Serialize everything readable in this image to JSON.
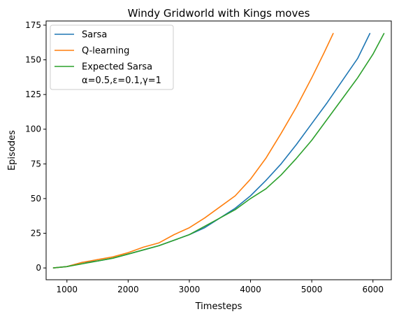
{
  "chart_data": {
    "type": "line",
    "title": "Windy Gridworld with Kings moves",
    "xlabel": "Timesteps",
    "ylabel": "Episodes",
    "xlim": [
      660,
      6300
    ],
    "ylim": [
      -8.5,
      178
    ],
    "xticks": [
      1000,
      2000,
      3000,
      4000,
      5000,
      6000
    ],
    "yticks": [
      0,
      25,
      50,
      75,
      100,
      125,
      150,
      175
    ],
    "grid": false,
    "legend_position": "top-left",
    "legend_note": "α=0.5,ε=0.1,γ=1",
    "series": [
      {
        "name": "Sarsa",
        "color": "#1f77b4",
        "x": [
          780,
          1000,
          1250,
          1500,
          1750,
          2000,
          2250,
          2500,
          2750,
          3000,
          3250,
          3500,
          3750,
          4000,
          4250,
          4500,
          4750,
          5000,
          5250,
          5500,
          5750,
          5950
        ],
        "y": [
          0,
          1,
          4,
          5,
          7,
          10,
          13,
          16,
          20,
          24,
          29,
          36,
          43,
          52,
          63,
          75,
          89,
          104,
          119,
          135,
          151,
          169
        ]
      },
      {
        "name": "Q-learning",
        "color": "#ff7f0e",
        "x": [
          780,
          1000,
          1250,
          1500,
          1750,
          2000,
          2250,
          2500,
          2750,
          3000,
          3250,
          3500,
          3750,
          4000,
          4250,
          4500,
          4750,
          5000,
          5200,
          5350
        ],
        "y": [
          0,
          1,
          4,
          6,
          8,
          11,
          15,
          18,
          24,
          29,
          36,
          44,
          52,
          64,
          79,
          97,
          116,
          137,
          155,
          169
        ]
      },
      {
        "name": "Expected Sarsa",
        "color": "#2ca02c",
        "x": [
          780,
          1000,
          1250,
          1500,
          1750,
          2000,
          2250,
          2500,
          2750,
          3000,
          3250,
          3500,
          3750,
          4000,
          4250,
          4500,
          4750,
          5000,
          5250,
          5500,
          5750,
          6000,
          6180
        ],
        "y": [
          0,
          1,
          3,
          5,
          7,
          10,
          13,
          16,
          20,
          24,
          30,
          36,
          42,
          50,
          57,
          67,
          79,
          92,
          107,
          122,
          137,
          154,
          169
        ]
      }
    ]
  }
}
